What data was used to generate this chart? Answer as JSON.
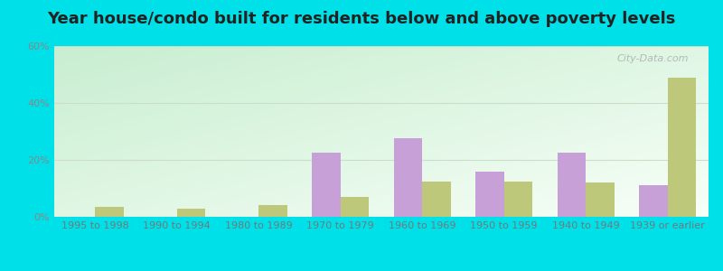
{
  "title": "Year house/condo built for residents below and above poverty levels",
  "categories": [
    "1995 to 1998",
    "1990 to 1994",
    "1980 to 1989",
    "1970 to 1979",
    "1960 to 1969",
    "1950 to 1959",
    "1940 to 1949",
    "1939 or earlier"
  ],
  "below_poverty": [
    0.0,
    0.0,
    0.0,
    22.5,
    27.5,
    16.0,
    22.5,
    11.0
  ],
  "above_poverty": [
    3.5,
    3.0,
    4.0,
    7.0,
    12.5,
    12.5,
    12.0,
    49.0
  ],
  "below_color": "#c8a0d8",
  "above_color": "#bec87a",
  "ylim": [
    0,
    60
  ],
  "yticks": [
    0,
    20,
    40,
    60
  ],
  "ytick_labels": [
    "0%",
    "20%",
    "40%",
    "60%"
  ],
  "outer_bg": "#00e0e8",
  "title_fontsize": 13,
  "tick_fontsize": 8,
  "watermark": "City-Data.com"
}
